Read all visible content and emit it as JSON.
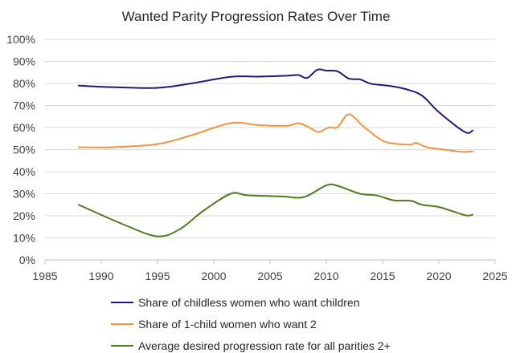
{
  "chart_data": {
    "type": "line",
    "title": "Wanted Parity Progression Rates Over Time",
    "xlabel": "",
    "ylabel": "",
    "xlim": [
      1985,
      2025
    ],
    "ylim": [
      0,
      1
    ],
    "x_ticks": [
      {
        "value": 1985,
        "label": "1985"
      },
      {
        "value": 1990,
        "label": "1990"
      },
      {
        "value": 1995,
        "label": "1995"
      },
      {
        "value": 2000,
        "label": "2000"
      },
      {
        "value": 2005,
        "label": "2005"
      },
      {
        "value": 2010,
        "label": "2010"
      },
      {
        "value": 2015,
        "label": "2015"
      },
      {
        "value": 2020,
        "label": "2020"
      },
      {
        "value": 2025,
        "label": "2025"
      }
    ],
    "y_ticks": [
      {
        "value": 0.0,
        "label": "0%"
      },
      {
        "value": 0.1,
        "label": "10%"
      },
      {
        "value": 0.2,
        "label": "20%"
      },
      {
        "value": 0.3,
        "label": "30%"
      },
      {
        "value": 0.4,
        "label": "40%"
      },
      {
        "value": 0.5,
        "label": "50%"
      },
      {
        "value": 0.6,
        "label": "60%"
      },
      {
        "value": 0.7,
        "label": "70%"
      },
      {
        "value": 0.8,
        "label": "80%"
      },
      {
        "value": 0.9,
        "label": "90%"
      },
      {
        "value": 1.0,
        "label": "100%"
      }
    ],
    "grid": "horizontal",
    "legend_position": "bottom",
    "series": [
      {
        "name": "Share of childless women who want children",
        "color": "#1f1a7a",
        "points": [
          [
            1988,
            0.79
          ],
          [
            1991,
            0.783
          ],
          [
            1995,
            0.78
          ],
          [
            1998,
            0.8
          ],
          [
            2001.5,
            0.83
          ],
          [
            2004,
            0.831
          ],
          [
            2006.5,
            0.835
          ],
          [
            2007.5,
            0.838
          ],
          [
            2008.3,
            0.825
          ],
          [
            2009.2,
            0.862
          ],
          [
            2010,
            0.858
          ],
          [
            2011,
            0.855
          ],
          [
            2012,
            0.822
          ],
          [
            2013,
            0.818
          ],
          [
            2014,
            0.798
          ],
          [
            2015.5,
            0.79
          ],
          [
            2017,
            0.775
          ],
          [
            2018.5,
            0.745
          ],
          [
            2020,
            0.67
          ],
          [
            2022.3,
            0.58
          ],
          [
            2023,
            0.587
          ]
        ]
      },
      {
        "name": "Share of 1-child women who want 2",
        "color": "#f5923e",
        "points": [
          [
            1988,
            0.511
          ],
          [
            1991,
            0.511
          ],
          [
            1995,
            0.525
          ],
          [
            1998,
            0.565
          ],
          [
            2001.5,
            0.62
          ],
          [
            2004,
            0.611
          ],
          [
            2006.5,
            0.608
          ],
          [
            2007.5,
            0.62
          ],
          [
            2008.5,
            0.6
          ],
          [
            2009.3,
            0.58
          ],
          [
            2010.2,
            0.6
          ],
          [
            2011,
            0.602
          ],
          [
            2012,
            0.66
          ],
          [
            2013.3,
            0.605
          ],
          [
            2015,
            0.54
          ],
          [
            2016.5,
            0.525
          ],
          [
            2017.5,
            0.523
          ],
          [
            2018,
            0.53
          ],
          [
            2019,
            0.51
          ],
          [
            2020.5,
            0.5
          ],
          [
            2022,
            0.49
          ],
          [
            2023,
            0.492
          ]
        ]
      },
      {
        "name": "Average desired progression rate for all parities 2+",
        "color": "#4e7d20",
        "points": [
          [
            1988,
            0.25
          ],
          [
            1992,
            0.16
          ],
          [
            1995,
            0.107
          ],
          [
            1997,
            0.14
          ],
          [
            1999,
            0.22
          ],
          [
            2001.5,
            0.3
          ],
          [
            2003,
            0.293
          ],
          [
            2006,
            0.288
          ],
          [
            2008,
            0.285
          ],
          [
            2010,
            0.338
          ],
          [
            2011,
            0.336
          ],
          [
            2013,
            0.3
          ],
          [
            2014.5,
            0.292
          ],
          [
            2016,
            0.27
          ],
          [
            2017.5,
            0.268
          ],
          [
            2018.5,
            0.25
          ],
          [
            2020,
            0.24
          ],
          [
            2022.3,
            0.203
          ],
          [
            2023,
            0.205
          ]
        ]
      }
    ]
  }
}
